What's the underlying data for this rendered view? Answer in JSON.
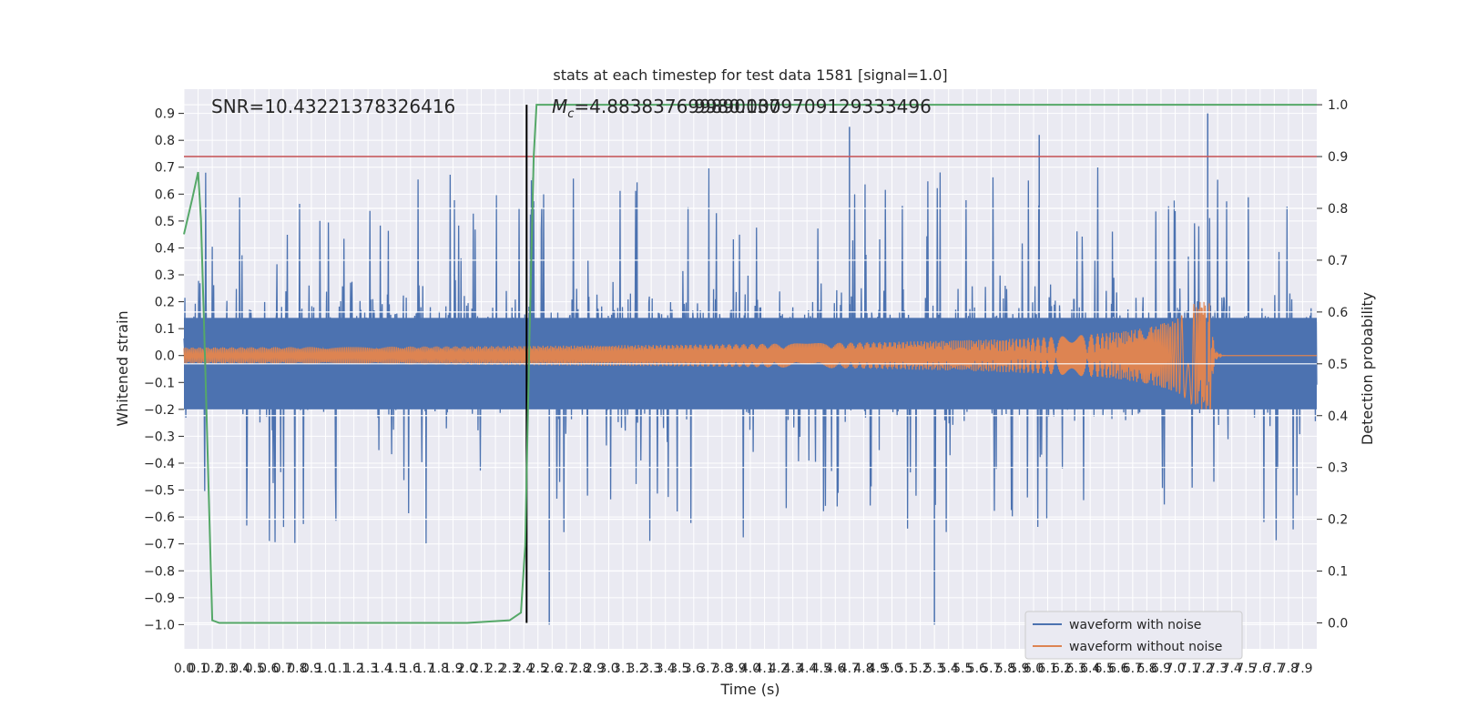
{
  "chart_data": {
    "type": "line",
    "title": "stats at each timestep for test data 1581 [signal=1.0]",
    "xlabel": "Time (s)",
    "ylabel": "Whitened strain",
    "y2label": "Detection probability",
    "xlim": [
      0.0,
      8.0
    ],
    "ylim": [
      -1.09,
      0.99
    ],
    "y2lim": [
      -0.05,
      1.03
    ],
    "xticks": [
      "0.0",
      "0.1",
      "0.2",
      "0.3",
      "0.4",
      "0.5",
      "0.6",
      "0.7",
      "0.8",
      "0.9",
      "1.0",
      "1.1",
      "1.2",
      "1.3",
      "1.4",
      "1.5",
      "1.6",
      "1.7",
      "1.8",
      "1.9",
      "2.0",
      "2.1",
      "2.2",
      "2.3",
      "2.4",
      "2.5",
      "2.6",
      "2.7",
      "2.8",
      "2.9",
      "3.0",
      "3.1",
      "3.2",
      "3.3",
      "3.4",
      "3.5",
      "3.6",
      "3.7",
      "3.8",
      "3.9",
      "4.0",
      "4.1",
      "4.2",
      "4.3",
      "4.4",
      "4.5",
      "4.6",
      "4.7",
      "4.8",
      "4.9",
      "5.0",
      "5.1",
      "5.2",
      "5.3",
      "5.4",
      "5.5",
      "5.6",
      "5.7",
      "5.8",
      "5.9",
      "6.0",
      "6.1",
      "6.2",
      "6.3",
      "6.4",
      "6.5",
      "6.6",
      "6.7",
      "6.8",
      "6.9",
      "7.0",
      "7.1",
      "7.2",
      "7.3",
      "7.4",
      "7.5",
      "7.6",
      "7.7",
      "7.8",
      "7.9"
    ],
    "yticks": [
      "−1.0",
      "−0.9",
      "−0.8",
      "−0.7",
      "−0.6",
      "−0.5",
      "−0.4",
      "−0.3",
      "−0.2",
      "−0.1",
      "0.0",
      "0.1",
      "0.2",
      "0.3",
      "0.4",
      "0.5",
      "0.6",
      "0.7",
      "0.8",
      "0.9"
    ],
    "y2ticks": [
      "0.0",
      "0.1",
      "0.2",
      "0.3",
      "0.4",
      "0.5",
      "0.6",
      "0.7",
      "0.8",
      "0.9",
      "1.0"
    ],
    "annotations": {
      "snr": "SNR=10.43221378326416",
      "mc_symbol": "M",
      "mc_sub": "c",
      "mc_value": "=4.883837699890137",
      "overlap": "9980.0009709129333496"
    },
    "threshold_y2": 0.9,
    "marker_time": 2.42,
    "merger_time": 7.25,
    "series": [
      {
        "name": "waveform with noise",
        "color": "#4c72b0",
        "noise_envelope": [
          0.3,
          0.9
        ],
        "spike_min": -1.0,
        "spike_max": 0.9
      },
      {
        "name": "waveform without noise",
        "color": "#dd8452",
        "start_amplitude": 0.03,
        "peak_amplitude": 0.2,
        "post_merger_value": 0.0
      },
      {
        "name": "detection probability",
        "color": "#55a868",
        "x": [
          0.0,
          0.06,
          0.1,
          0.12,
          0.15,
          0.18,
          0.2,
          0.25,
          0.5,
          1.0,
          1.5,
          2.0,
          2.3,
          2.38,
          2.41,
          2.44,
          2.47,
          2.49,
          2.55,
          3.0,
          8.0
        ],
        "y": [
          0.75,
          0.82,
          0.87,
          0.78,
          0.5,
          0.2,
          0.005,
          0.0,
          0.0,
          0.0,
          0.0,
          0.0,
          0.005,
          0.02,
          0.15,
          0.55,
          0.9,
          1.0,
          1.0,
          1.0,
          1.0
        ]
      },
      {
        "name": "threshold",
        "color": "#c44e52",
        "y2": 0.9
      }
    ],
    "legend": {
      "position": "bottom-right",
      "items": [
        "waveform with noise",
        "waveform without noise"
      ]
    }
  }
}
